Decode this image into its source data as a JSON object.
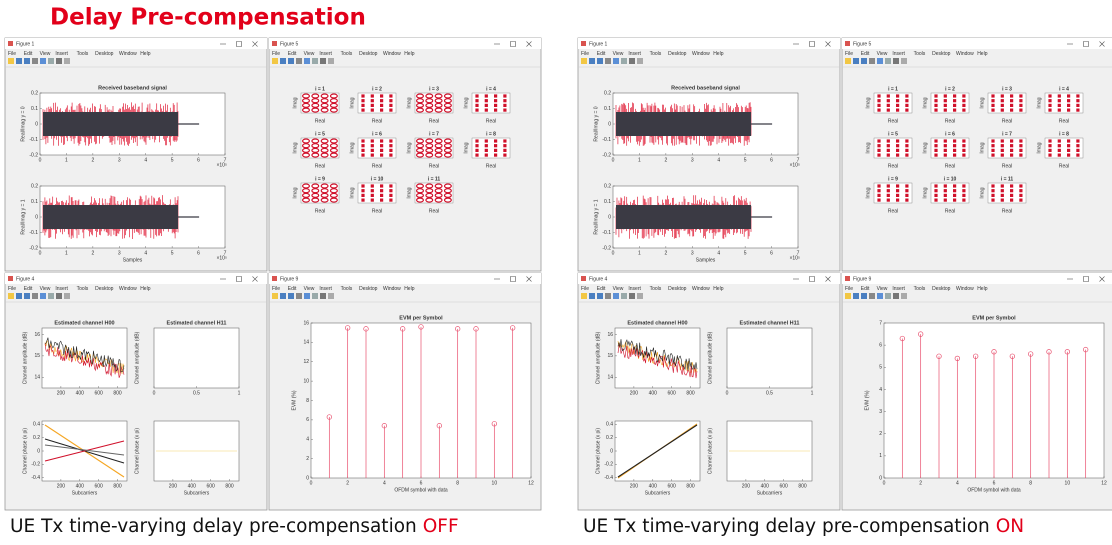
{
  "title": "Delay Pre-compensation",
  "menu": [
    "File",
    "Edit",
    "View",
    "Insert",
    "Tools",
    "Desktop",
    "Window",
    "Help"
  ],
  "panels": [
    {
      "caption": "UE Tx time-varying delay pre-compensation",
      "state": "OFF",
      "figures": [
        "Figure 1",
        "Figure 5",
        "Figure 4",
        "Figure 9"
      ]
    },
    {
      "caption": "UE Tx time-varying delay pre-compensation",
      "state": "ON",
      "figures": [
        "Figure 1",
        "Figure 5",
        "Figure 4",
        "Figure 9"
      ]
    }
  ],
  "signal_axes": [
    {
      "title": "Received baseband signal",
      "ylabel": "Real/Imag y = 0",
      "xlim": [
        0,
        7
      ],
      "ylim": [
        -0.2,
        0.2
      ],
      "xticks": [
        0,
        1,
        2,
        3,
        4,
        5,
        6,
        7
      ],
      "yticks": [
        -0.2,
        -0.1,
        0,
        0.1,
        0.2
      ],
      "exponent": "×10⁵"
    },
    {
      "ylabel": "Real/Imag y = 1",
      "xlabel": "Samples",
      "xlim": [
        0,
        7
      ],
      "ylim": [
        -0.2,
        0.2
      ],
      "xticks": [
        0,
        1,
        2,
        3,
        4,
        5,
        6,
        7
      ],
      "yticks": [
        -0.2,
        -0.1,
        0,
        0.1,
        0.2
      ],
      "exponent": "×10⁵"
    }
  ],
  "constellation": {
    "titles": [
      "i = 1",
      "i = 2",
      "i = 3",
      "i = 4",
      "i = 5",
      "i = 6",
      "i = 7",
      "i = 8",
      "i = 9",
      "i = 10",
      "i = 11"
    ],
    "xlabel": "Real",
    "ylabel": "Imag"
  },
  "channel_axes": [
    {
      "title": "Estimated channel H00",
      "ylabel": "Channel amplitude (dB)",
      "xlim": [
        0,
        900
      ],
      "ylim": [
        13.5,
        16.3
      ],
      "xticks": [
        200,
        400,
        600,
        800
      ],
      "yticks": [
        14,
        15,
        16
      ]
    },
    {
      "title": "Estimated channel H11",
      "ylabel": "Channel amplitude (dB)",
      "xlim": [
        0,
        1
      ],
      "ylim": [
        0,
        1
      ],
      "xticks": [
        0,
        0.5,
        1
      ],
      "yticks": []
    },
    {
      "ylabel": "Channel phase (x pi)",
      "xlabel": "Subcarriers",
      "xlim": [
        0,
        900
      ],
      "ylim": [
        -0.45,
        0.45
      ],
      "xticks": [
        200,
        400,
        600,
        800
      ],
      "yticks": [
        -0.4,
        -0.2,
        0,
        0.2,
        0.4
      ]
    },
    {
      "ylabel": "Channel phase (x pi)",
      "xlabel": "Subcarriers",
      "xlim": [
        0,
        900
      ],
      "ylim": [
        -1,
        1
      ],
      "xticks": [
        200,
        400,
        600,
        800
      ],
      "yticks": []
    }
  ],
  "chart_data": [
    {
      "type": "stem",
      "title": "EVM per Symbol",
      "xlabel": "OFDM symbol with data",
      "ylabel": "EVM (%)",
      "color": "#e8506e",
      "x": [
        1,
        2,
        3,
        4,
        5,
        6,
        7,
        8,
        9,
        10,
        11
      ],
      "values": [
        6.3,
        15.5,
        15.4,
        5.4,
        15.4,
        15.6,
        5.4,
        15.4,
        15.4,
        5.6,
        15.5
      ],
      "xlim": [
        0,
        12
      ],
      "ylim": [
        0,
        16
      ],
      "xticks": [
        0,
        2,
        4,
        6,
        8,
        10,
        12
      ],
      "yticks": [
        0,
        2,
        4,
        6,
        8,
        10,
        12,
        14,
        16
      ]
    },
    {
      "type": "stem",
      "title": "EVM per Symbol",
      "xlabel": "OFDM symbol with data",
      "ylabel": "EVM (%)",
      "color": "#e8506e",
      "x": [
        1,
        2,
        3,
        4,
        5,
        6,
        7,
        8,
        9,
        10,
        11
      ],
      "values": [
        6.3,
        6.5,
        5.5,
        5.4,
        5.5,
        5.7,
        5.5,
        5.6,
        5.7,
        5.7,
        5.8
      ],
      "xlim": [
        0,
        12
      ],
      "ylim": [
        0,
        7
      ],
      "xticks": [
        0,
        2,
        4,
        6,
        8,
        10,
        12
      ],
      "yticks": [
        0,
        1,
        2,
        3,
        4,
        5,
        6,
        7
      ]
    }
  ]
}
